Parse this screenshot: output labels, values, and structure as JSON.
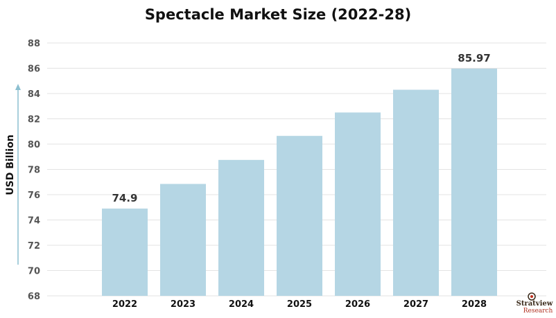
{
  "chart_data": {
    "type": "bar",
    "title": "Spectacle Market Size (2022-28)",
    "ylabel": "USD Billion",
    "xlabel": "",
    "categories": [
      "2022",
      "2023",
      "2024",
      "2025",
      "2026",
      "2027",
      "2028"
    ],
    "values": [
      74.9,
      76.85,
      78.75,
      80.65,
      82.5,
      84.3,
      85.97
    ],
    "data_labels": {
      "0": "74.9",
      "6": "85.97"
    },
    "ylim": [
      68,
      88
    ],
    "yticks": [
      68,
      70,
      72,
      74,
      76,
      78,
      80,
      82,
      84,
      86,
      88
    ],
    "grid": true,
    "bar_color": "#b5d6e4",
    "grid_color": "#e3e3e3"
  },
  "logo": {
    "name": "Stratview",
    "sub": "Research",
    "icon": "target-icon"
  }
}
